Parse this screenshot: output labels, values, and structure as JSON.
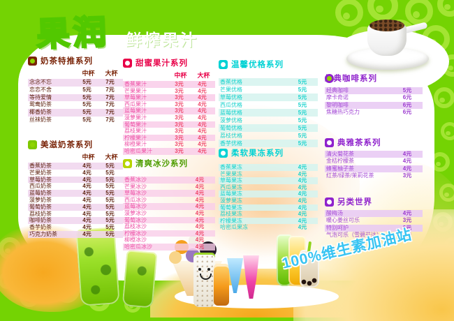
{
  "brand": {
    "title": "果润",
    "subtitle": "鲜榨果汁",
    "slogan": "100%维生素加油站"
  },
  "colors": {
    "background_green": "#74d303",
    "ring_green": "#a3e433",
    "panel_white": "#ffffff",
    "maroon_accent": "#7a2509",
    "red_accent": "#e80048",
    "pink_item": "#ee4fa5",
    "green_accent": "#4e9d00",
    "cyan_accent": "#00d2d4",
    "purple_accent": "#8f22cc",
    "slogan_cyan": "#38c4f2",
    "splash_orange": "#f7a81f"
  },
  "sections": [
    {
      "title": "奶茶特推系列",
      "columns": [
        "中杯",
        "大杯"
      ],
      "items": [
        {
          "name": "念念不忘",
          "prices": [
            "5元",
            "7元"
          ]
        },
        {
          "name": "恋恋不舍",
          "prices": [
            "5元",
            "7元"
          ]
        },
        {
          "name": "等待爱情",
          "prices": [
            "5元",
            "7元"
          ]
        },
        {
          "name": "鸳鸯奶茶",
          "prices": [
            "5元",
            "7元"
          ]
        },
        {
          "name": "椰香奶茶",
          "prices": [
            "5元",
            "7元"
          ]
        },
        {
          "name": "丝袜奶茶",
          "prices": [
            "5元",
            "7元"
          ]
        }
      ]
    },
    {
      "title": "美滋奶茶系列",
      "columns": [
        "中杯",
        "大杯"
      ],
      "items": [
        {
          "name": "香蕉奶茶",
          "prices": [
            "4元",
            "5元"
          ]
        },
        {
          "name": "芒果奶茶",
          "prices": [
            "4元",
            "5元"
          ]
        },
        {
          "name": "草莓奶茶",
          "prices": [
            "4元",
            "5元"
          ]
        },
        {
          "name": "西瓜奶茶",
          "prices": [
            "4元",
            "5元"
          ]
        },
        {
          "name": "蓝莓奶茶",
          "prices": [
            "4元",
            "5元"
          ]
        },
        {
          "name": "菠萝奶茶",
          "prices": [
            "4元",
            "5元"
          ]
        },
        {
          "name": "葡萄奶茶",
          "prices": [
            "4元",
            "5元"
          ]
        },
        {
          "name": "荔枝奶茶",
          "prices": [
            "4元",
            "5元"
          ]
        },
        {
          "name": "咖啡奶茶",
          "prices": [
            "4元",
            "5元"
          ]
        },
        {
          "name": "香芋奶茶",
          "prices": [
            "4元",
            "5元"
          ]
        },
        {
          "name": "巧克力奶茶",
          "prices": [
            "4元",
            "5元"
          ]
        }
      ]
    },
    {
      "title": "甜蜜果汁系列",
      "columns": [
        "中杯",
        "大杯"
      ],
      "items": [
        {
          "name": "香蕉果汁",
          "prices": [
            "3元",
            "4元"
          ]
        },
        {
          "name": "芒果果汁",
          "prices": [
            "3元",
            "4元"
          ]
        },
        {
          "name": "草莓果汁",
          "prices": [
            "3元",
            "4元"
          ]
        },
        {
          "name": "西瓜果汁",
          "prices": [
            "3元",
            "4元"
          ]
        },
        {
          "name": "蓝莓果汁",
          "prices": [
            "3元",
            "4元"
          ]
        },
        {
          "name": "菠萝果汁",
          "prices": [
            "3元",
            "4元"
          ]
        },
        {
          "name": "葡萄果汁",
          "prices": [
            "3元",
            "4元"
          ]
        },
        {
          "name": "荔枝果汁",
          "prices": [
            "3元",
            "4元"
          ]
        },
        {
          "name": "柠檬果汁",
          "prices": [
            "3元",
            "4元"
          ]
        },
        {
          "name": "柳橙果汁",
          "prices": [
            "3元",
            "4元"
          ]
        },
        {
          "name": "哈密瓜果汁",
          "prices": [
            "3元",
            "4元"
          ]
        }
      ]
    },
    {
      "title": "清爽冰沙系列",
      "columns": [],
      "items": [
        {
          "name": "香蕉冰沙",
          "prices": [
            "4元"
          ]
        },
        {
          "name": "芒果冰沙",
          "prices": [
            "4元"
          ]
        },
        {
          "name": "草莓冰沙",
          "prices": [
            "4元"
          ]
        },
        {
          "name": "西瓜冰沙",
          "prices": [
            "4元"
          ]
        },
        {
          "name": "蓝莓冰沙",
          "prices": [
            "4元"
          ]
        },
        {
          "name": "菠萝冰沙",
          "prices": [
            "4元"
          ]
        },
        {
          "name": "葡萄冰沙",
          "prices": [
            "4元"
          ]
        },
        {
          "name": "荔枝冰沙",
          "prices": [
            "4元"
          ]
        },
        {
          "name": "柠檬冰沙",
          "prices": [
            "4元"
          ]
        },
        {
          "name": "柳橙冰沙",
          "prices": [
            "4元"
          ]
        },
        {
          "name": "哈密瓜冰沙",
          "prices": [
            "4元"
          ]
        }
      ]
    },
    {
      "title": "温馨优格系列",
      "columns": [],
      "items": [
        {
          "name": "香蕉优格",
          "prices": [
            "5元"
          ]
        },
        {
          "name": "芒果优格",
          "prices": [
            "5元"
          ]
        },
        {
          "name": "草莓优格",
          "prices": [
            "5元"
          ]
        },
        {
          "name": "西瓜优格",
          "prices": [
            "5元"
          ]
        },
        {
          "name": "蓝莓优格",
          "prices": [
            "5元"
          ]
        },
        {
          "name": "菠萝优格",
          "prices": [
            "5元"
          ]
        },
        {
          "name": "葡萄优格",
          "prices": [
            "5元"
          ]
        },
        {
          "name": "荔枝优格",
          "prices": [
            "5元"
          ]
        },
        {
          "name": "香芋优格",
          "prices": [
            "5元"
          ]
        }
      ]
    },
    {
      "title": "柔软果冻系列",
      "columns": [],
      "items": [
        {
          "name": "香蕉果冻",
          "prices": [
            "4元"
          ]
        },
        {
          "name": "芒果果冻",
          "prices": [
            "4元"
          ]
        },
        {
          "name": "草莓果冻",
          "prices": [
            "4元"
          ]
        },
        {
          "name": "西瓜果冻",
          "prices": [
            "4元"
          ]
        },
        {
          "name": "蓝莓果冻",
          "prices": [
            "4元"
          ]
        },
        {
          "name": "菠萝果冻",
          "prices": [
            "4元"
          ]
        },
        {
          "name": "葡萄果冻",
          "prices": [
            "4元"
          ]
        },
        {
          "name": "荔枝果冻",
          "prices": [
            "4元"
          ]
        },
        {
          "name": "柠檬果冻",
          "prices": [
            "4元"
          ]
        },
        {
          "name": "哈密瓜果冻",
          "prices": [
            "4元"
          ]
        }
      ]
    },
    {
      "title": "经典咖啡系列",
      "columns": [],
      "items": [
        {
          "name": "经典咖啡",
          "prices": [
            "5元"
          ]
        },
        {
          "name": "摩卡奇诺",
          "prices": [
            "6元"
          ]
        },
        {
          "name": "黎明咖啡",
          "prices": [
            "6元"
          ]
        },
        {
          "name": "焦糖热巧克力",
          "prices": [
            "6元"
          ]
        }
      ]
    },
    {
      "title": "典雅茶系列",
      "columns": [],
      "items": [
        {
          "name": "清火菊花茶",
          "prices": [
            "4元"
          ]
        },
        {
          "name": "金桔柠檬茶",
          "prices": [
            "4元"
          ]
        },
        {
          "name": "蜂蜜柚子茶",
          "prices": [
            "4元"
          ]
        },
        {
          "name": "红茶/绿茶/茉莉花茶",
          "prices": [
            "3元"
          ]
        }
      ]
    },
    {
      "title": "另类世界",
      "columns": [],
      "items": [
        {
          "name": "酸梅汤",
          "prices": [
            "4元"
          ]
        },
        {
          "name": "暖心姜丝可乐",
          "prices": [
            "3元"
          ]
        },
        {
          "name": "特别呵护",
          "prices": [
            "3元"
          ]
        },
        {
          "name": "气泡可乐（雪碧芬达）",
          "prices": [
            "3元"
          ]
        }
      ]
    }
  ]
}
